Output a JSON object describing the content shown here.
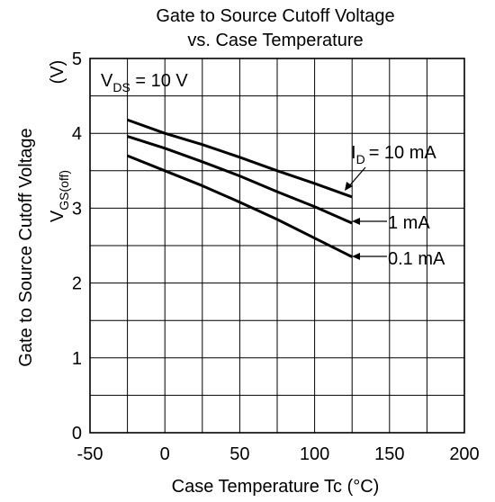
{
  "chart_data": {
    "type": "line",
    "title_line1": "Gate to Source Cutoff Voltage",
    "title_line2": "vs. Case Temperature",
    "xlabel": "Case Temperature  Tc  (°C)",
    "ylabel_main": "Gate to Source Cutoff Voltage",
    "ylabel_sym": "V",
    "ylabel_sub": "GS(off)",
    "ylabel_unit": "(V)",
    "condition_main": "V",
    "condition_sub": "DS",
    "condition_value": " = 10 V",
    "xlim": [
      -50,
      200
    ],
    "ylim": [
      0,
      5
    ],
    "x_ticks": [
      -50,
      0,
      50,
      100,
      150,
      200
    ],
    "x_tick_labels": [
      "-50",
      "0",
      "50",
      "100",
      "150",
      "200"
    ],
    "y_ticks": [
      0,
      1,
      2,
      3,
      4,
      5
    ],
    "y_tick_labels": [
      "0",
      "1",
      "2",
      "3",
      "4",
      "5"
    ],
    "x_grid_step": 25,
    "y_grid_step": 0.5,
    "grid": true,
    "series": [
      {
        "name": "10 mA",
        "label_main": "I",
        "label_sub": "D",
        "label_rest": "= 10 mA",
        "x": [
          -25,
          0,
          25,
          50,
          75,
          100,
          125
        ],
        "y": [
          4.18,
          4.0,
          3.85,
          3.68,
          3.5,
          3.33,
          3.15
        ]
      },
      {
        "name": "1 mA",
        "label_main": "1 mA",
        "x": [
          -25,
          0,
          25,
          50,
          75,
          100,
          125
        ],
        "y": [
          3.96,
          3.8,
          3.62,
          3.43,
          3.22,
          3.02,
          2.8
        ]
      },
      {
        "name": "0.1 mA",
        "label_main": "0.1 mA",
        "x": [
          -25,
          0,
          25,
          50,
          75,
          100,
          125
        ],
        "y": [
          3.7,
          3.5,
          3.3,
          3.08,
          2.85,
          2.6,
          2.35
        ]
      }
    ]
  }
}
